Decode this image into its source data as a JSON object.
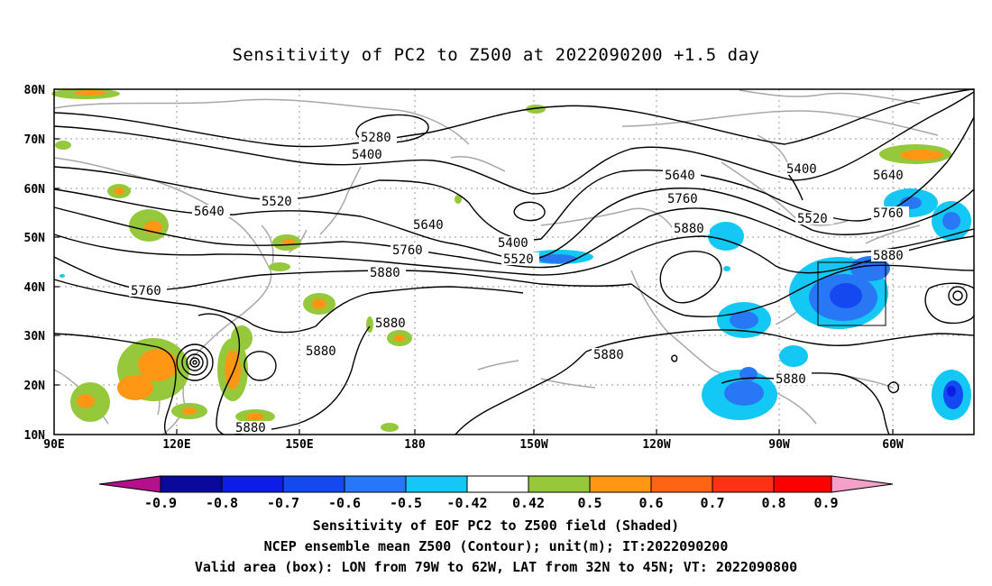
{
  "title": "Sensitivity of PC2 to Z500 at 2022090200 +1.5 day",
  "lat_labels": [
    "80N",
    "70N",
    "60N",
    "50N",
    "40N",
    "30N",
    "20N",
    "10N"
  ],
  "lon_labels": [
    "90E",
    "120E",
    "150E",
    "180",
    "150W",
    "120W",
    "90W",
    "60W"
  ],
  "contour_labels": {
    "c5280": "5280",
    "c5400a": "5400",
    "c5400b": "5400",
    "c5400c": "5400",
    "c5520a": "5520",
    "c5520b": "5520",
    "c5520c": "5520",
    "c5640a": "5640",
    "c5640b": "5640",
    "c5640c": "5640",
    "c5640d": "5640",
    "c5760a": "5760",
    "c5760b": "5760",
    "c5760c": "5760",
    "c5760d": "5760",
    "c5880a": "5880",
    "c5880b": "5880",
    "c5880c": "5880",
    "c5880d": "5880",
    "c5880e": "5880",
    "c5880f": "5880",
    "c5880g": "5880",
    "c5880h": "5880"
  },
  "colorbar": {
    "labels": [
      "-0.9",
      "-0.8",
      "-0.7",
      "-0.6",
      "-0.5",
      "-0.42",
      "0.42",
      "0.5",
      "0.6",
      "0.7",
      "0.8",
      "0.9"
    ],
    "colors": {
      "low_arrow": "#b4108c",
      "c1": "#0a0a9a",
      "c2": "#0c1ee6",
      "c3": "#1448f0",
      "c4": "#2878f5",
      "c5": "#14c8f5",
      "white": "#ffffff",
      "c6": "#96c83c",
      "c7": "#ff9614",
      "c8": "#ff6414",
      "c9": "#ff3214",
      "c10": "#ff0000",
      "high_arrow": "#f5a0c8"
    }
  },
  "captions": {
    "line1": "Sensitivity of EOF PC2 to Z500 field (Shaded)",
    "line2": "NCEP ensemble mean Z500 (Contour); unit(m); IT:2022090200",
    "line3": "Valid area (box): LON from 79W to 62W, LAT from 32N to 45N; VT: 2022090800"
  }
}
